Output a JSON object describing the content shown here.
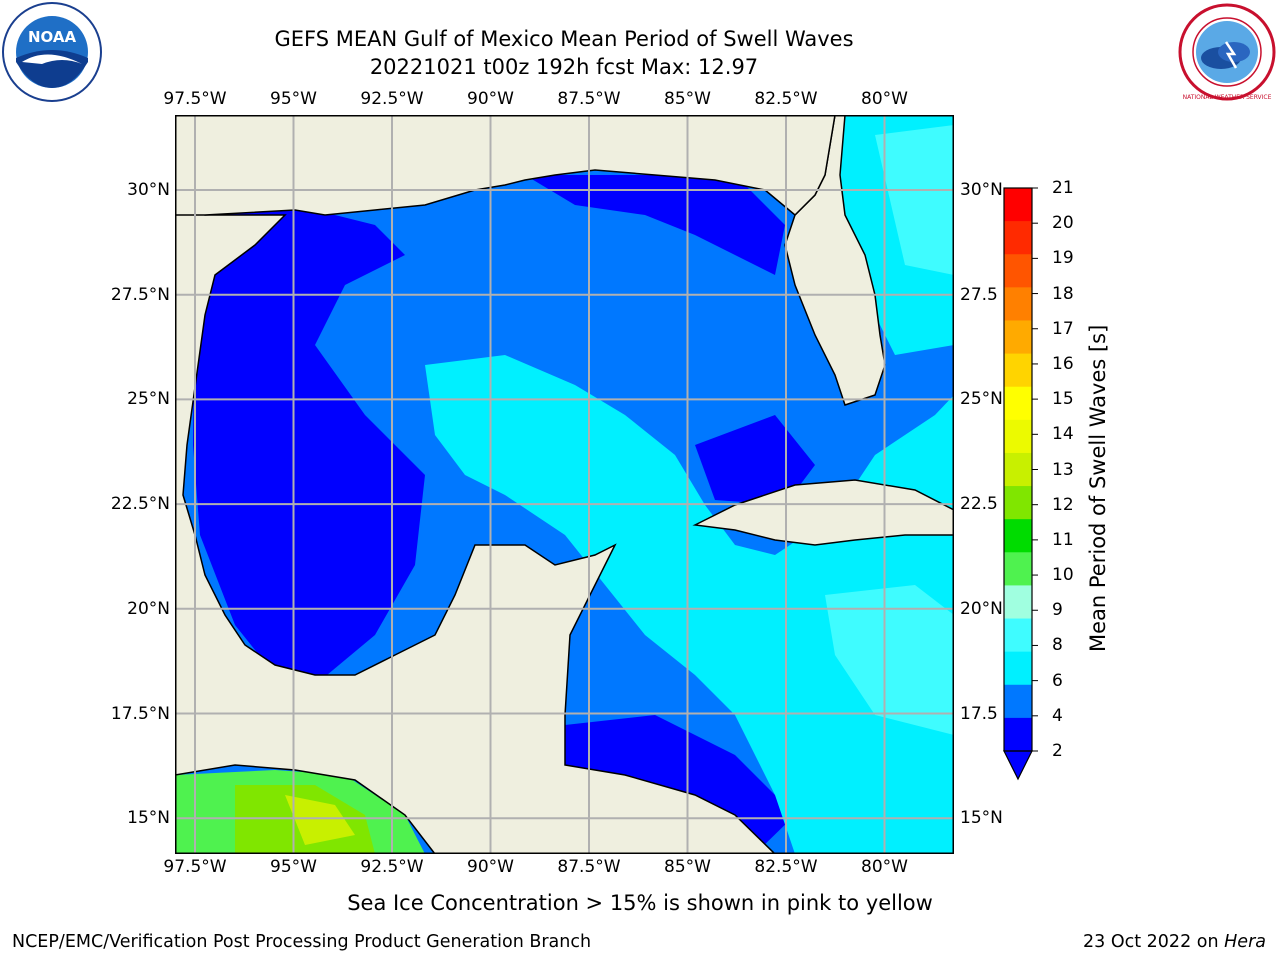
{
  "header": {
    "title_line1": "GEFS MEAN Gulf of Mexico Mean Period of Swell Waves",
    "title_line2": "20221021 t00z 192h fcst   Max: 12.97"
  },
  "logos": {
    "left": {
      "name": "noaa-logo",
      "text": "NOAA"
    },
    "right": {
      "name": "nws-logo",
      "text": "NATIONAL WEATHER SERVICE"
    }
  },
  "map": {
    "lon_ticks": [
      "97.5°W",
      "95°W",
      "92.5°W",
      "90°W",
      "87.5°W",
      "85°W",
      "82.5°W",
      "80°W"
    ],
    "lat_ticks_left": [
      "30°N",
      "27.5°N",
      "25°N",
      "22.5°N",
      "20°N",
      "17.5°N",
      "15°N"
    ],
    "lat_ticks_right": [
      "30°N",
      "27.5",
      "25°N",
      "22.5",
      "20°N",
      "17.5",
      "15°N"
    ],
    "land_color": "#efefdf",
    "gridline_color": "#b0b0b0"
  },
  "colorbar": {
    "label": "Mean Period of Swell Waves [s]",
    "ticks": [
      "21",
      "20",
      "19",
      "18",
      "17",
      "16",
      "15",
      "14",
      "13",
      "12",
      "11",
      "10",
      "9",
      "8",
      "6",
      "4",
      "2"
    ],
    "colors": [
      "#ff0000",
      "#ff2a00",
      "#ff5500",
      "#ff8000",
      "#ffaa00",
      "#ffd400",
      "#ffff00",
      "#ecfa00",
      "#c8f000",
      "#80e600",
      "#00dc00",
      "#4ff24f",
      "#a0ffe0",
      "#3ffcff",
      "#00f0ff",
      "#0078ff",
      "#0000ff"
    ],
    "under_color": "#0000ff"
  },
  "footer": {
    "note": "Sea Ice Concentration > 15% is shown in pink to yellow",
    "credit": "NCEP/EMC/Verification Post Processing Product Generation Branch",
    "date": "23 Oct 2022 on ",
    "machine": "Hera"
  }
}
